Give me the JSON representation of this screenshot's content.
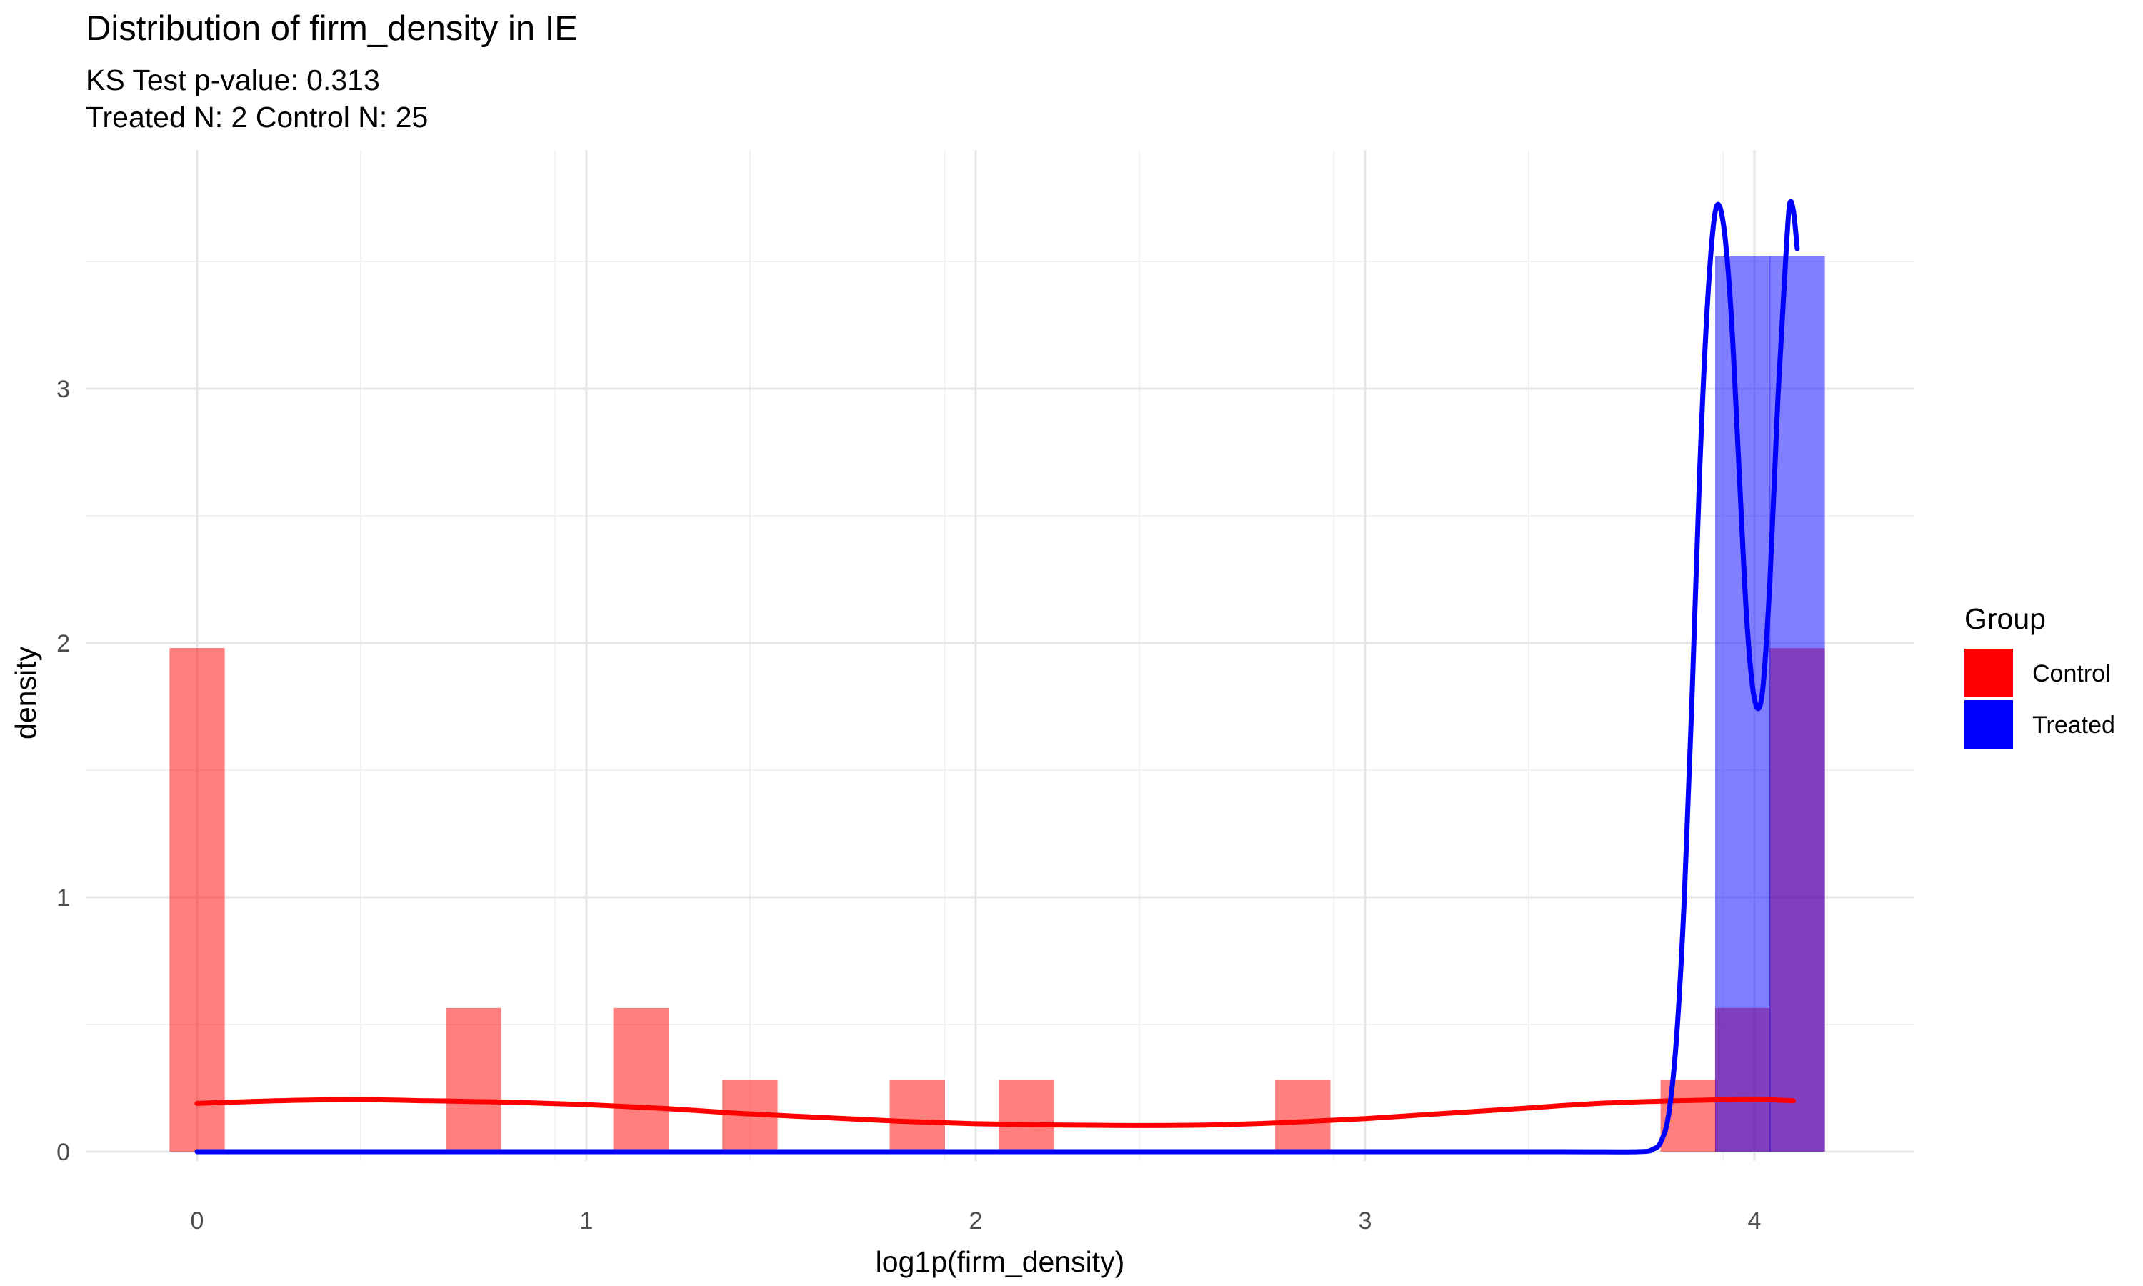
{
  "chart_data": {
    "type": "histogram",
    "title": "Distribution of firm_density in IE",
    "subtitle_lines": [
      "KS Test p-value: 0.313",
      "Treated N: 2 Control N: 25"
    ],
    "xlabel": "log1p(firm_density)",
    "ylabel": "density",
    "xlim": [
      -0.08,
      4.4
    ],
    "ylim": [
      0,
      3.9
    ],
    "x_ticks": [
      0,
      1,
      2,
      3,
      4
    ],
    "y_ticks": [
      0,
      1,
      2,
      3
    ],
    "grid": true,
    "legend": {
      "title": "Group",
      "position": "right",
      "entries": [
        {
          "label": "Control",
          "color": "#FF0000"
        },
        {
          "label": "Treated",
          "color": "#0000FF"
        }
      ]
    },
    "series": [
      {
        "name": "Control",
        "color": "#FF0000",
        "bar_opacity": 0.5,
        "bin_width": 0.142,
        "bars": [
          {
            "x": 0.0,
            "density": 1.98
          },
          {
            "x": 0.71,
            "density": 0.565
          },
          {
            "x": 1.14,
            "density": 0.565
          },
          {
            "x": 1.42,
            "density": 0.282
          },
          {
            "x": 1.85,
            "density": 0.282
          },
          {
            "x": 2.13,
            "density": 0.282
          },
          {
            "x": 2.84,
            "density": 0.282
          },
          {
            "x": 3.83,
            "density": 0.282
          },
          {
            "x": 3.97,
            "density": 0.565
          },
          {
            "x": 4.11,
            "density": 1.98
          }
        ],
        "density_curve": [
          [
            0.0,
            0.19
          ],
          [
            0.2,
            0.2
          ],
          [
            0.4,
            0.205
          ],
          [
            0.6,
            0.2
          ],
          [
            0.8,
            0.195
          ],
          [
            1.0,
            0.185
          ],
          [
            1.2,
            0.17
          ],
          [
            1.4,
            0.15
          ],
          [
            1.6,
            0.135
          ],
          [
            1.8,
            0.12
          ],
          [
            2.0,
            0.11
          ],
          [
            2.2,
            0.105
          ],
          [
            2.4,
            0.103
          ],
          [
            2.6,
            0.105
          ],
          [
            2.8,
            0.115
          ],
          [
            3.0,
            0.13
          ],
          [
            3.2,
            0.15
          ],
          [
            3.4,
            0.17
          ],
          [
            3.6,
            0.19
          ],
          [
            3.8,
            0.2
          ],
          [
            4.0,
            0.205
          ],
          [
            4.1,
            0.2
          ]
        ]
      },
      {
        "name": "Treated",
        "color": "#0000FF",
        "bar_opacity": 0.5,
        "bin_width": 0.142,
        "bars": [
          {
            "x": 3.97,
            "density": 3.52
          },
          {
            "x": 4.11,
            "density": 3.52
          }
        ],
        "density_curve": [
          [
            0.0,
            0.0
          ],
          [
            1.0,
            0.0
          ],
          [
            2.0,
            0.0
          ],
          [
            3.0,
            0.0
          ],
          [
            3.5,
            0.0
          ],
          [
            3.7,
            0.0
          ],
          [
            3.74,
            0.01
          ],
          [
            3.76,
            0.04
          ],
          [
            3.78,
            0.15
          ],
          [
            3.8,
            0.45
          ],
          [
            3.82,
            1.0
          ],
          [
            3.84,
            1.8
          ],
          [
            3.86,
            2.7
          ],
          [
            3.88,
            3.35
          ],
          [
            3.9,
            3.7
          ],
          [
            3.92,
            3.65
          ],
          [
            3.94,
            3.3
          ],
          [
            3.96,
            2.7
          ],
          [
            3.98,
            2.1
          ],
          [
            4.0,
            1.78
          ],
          [
            4.02,
            1.8
          ],
          [
            4.04,
            2.25
          ],
          [
            4.06,
            2.95
          ],
          [
            4.08,
            3.5
          ],
          [
            4.09,
            3.72
          ],
          [
            4.1,
            3.7
          ],
          [
            4.11,
            3.55
          ]
        ]
      }
    ]
  }
}
